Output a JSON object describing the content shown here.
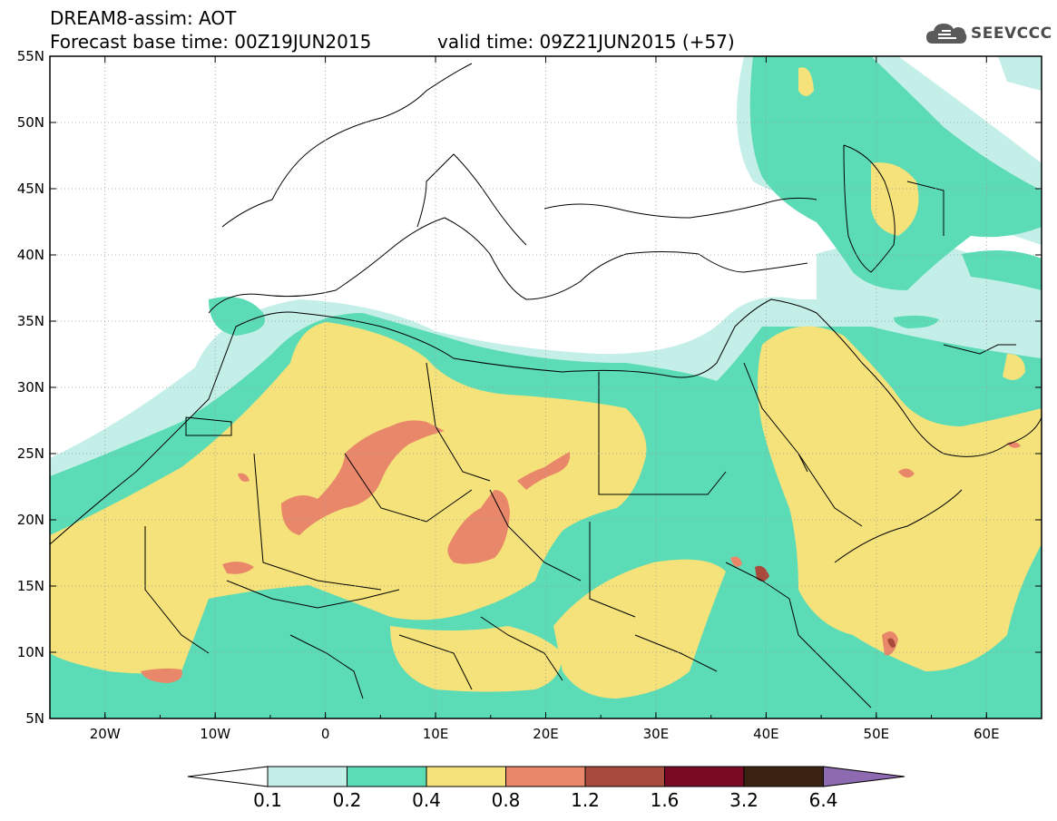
{
  "header": {
    "title_line1": "DREAM8-assim: AOT",
    "title_line2": "Forecast base time: 00Z19JUN2015",
    "valid_time": "valid time: 09Z21JUN2015 (+57)"
  },
  "logo": {
    "text": "SEEVCCC",
    "icon": "cloud-icon"
  },
  "map": {
    "lon_range": [
      -25,
      65
    ],
    "lat_range": [
      5,
      55
    ],
    "lat_ticks": [
      "55N",
      "50N",
      "45N",
      "40N",
      "35N",
      "30N",
      "25N",
      "20N",
      "15N",
      "10N",
      "5N"
    ],
    "lon_ticks": [
      "20W",
      "10W",
      "0",
      "10E",
      "20E",
      "30E",
      "40E",
      "50E",
      "60E"
    ]
  },
  "colorbar": {
    "labels": [
      "0.1",
      "0.2",
      "0.4",
      "0.8",
      "1.2",
      "1.6",
      "3.2",
      "6.4"
    ],
    "colors": [
      "#ffffff",
      "#c4efe8",
      "#5cdcb6",
      "#f5e27a",
      "#e8876a",
      "#a94b3c",
      "#7a0a23",
      "#3a2312",
      "#8e6bb0"
    ]
  }
}
